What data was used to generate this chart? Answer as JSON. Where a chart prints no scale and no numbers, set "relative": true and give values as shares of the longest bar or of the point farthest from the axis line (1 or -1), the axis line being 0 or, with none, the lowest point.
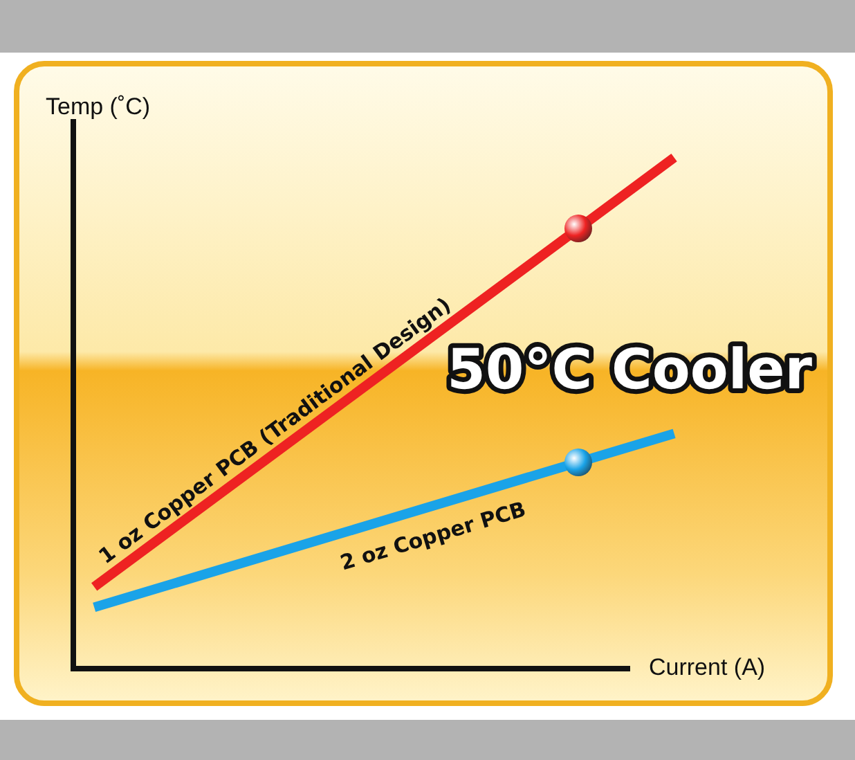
{
  "chart_data": {
    "type": "line",
    "relative": true,
    "xlabel": "Current (A)",
    "ylabel": "Temp (˚C)",
    "categories": [
      null,
      null
    ],
    "series": [
      {
        "name": "1 oz Copper PCB (Traditional Design)",
        "color": "#ee2222",
        "values": [
          0.16,
          1.0
        ]
      },
      {
        "name": "2 oz Copper PCB",
        "color": "#1aa3e8",
        "values": [
          0.12,
          0.46
        ]
      }
    ],
    "annotations": [
      "50°C Cooler"
    ],
    "grid": false,
    "legend": false,
    "marker": "none",
    "line_style": "solid"
  }
}
